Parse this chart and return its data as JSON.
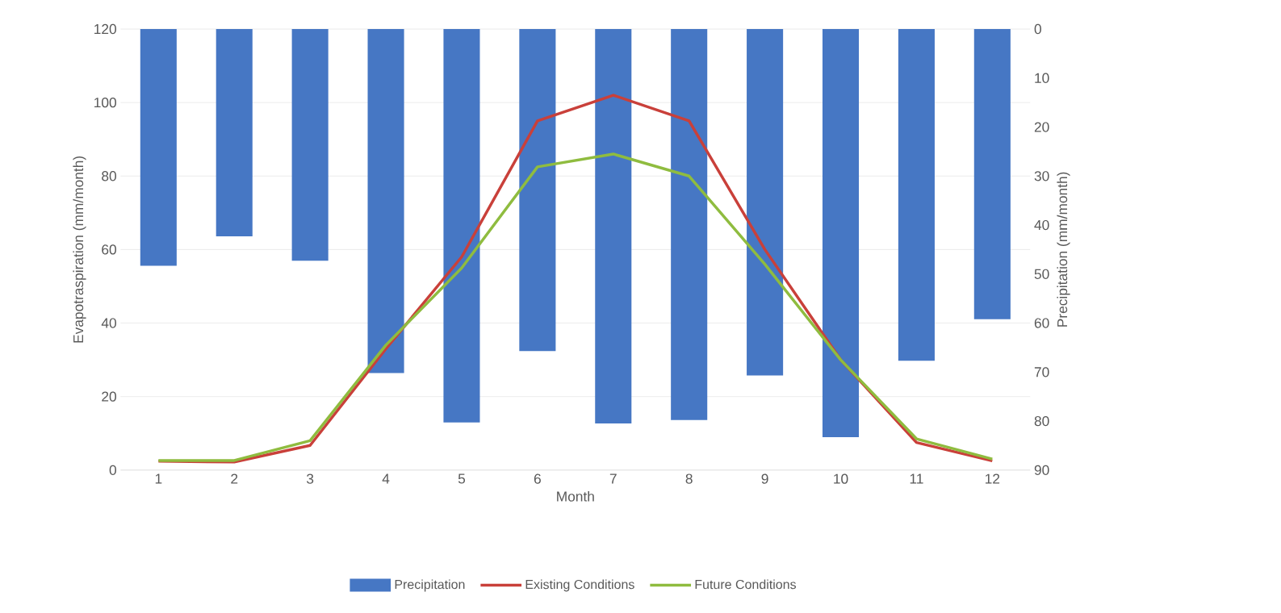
{
  "chart_data": {
    "type": "bar",
    "xlabel": "Month",
    "ylabel": "Evapotraspiration (mm/month)",
    "y2label": "Precipitation (mm/month)",
    "categories": [
      "1",
      "2",
      "3",
      "4",
      "5",
      "6",
      "7",
      "8",
      "9",
      "10",
      "11",
      "12"
    ],
    "series": [
      {
        "name": "Precipitation",
        "axis": "y2",
        "color": "#4677c4",
        "values": [
          48.3,
          42.3,
          47.3,
          70.2,
          80.3,
          65.7,
          80.5,
          79.8,
          70.7,
          83.3,
          67.7,
          59.2
        ]
      },
      {
        "name": "Existing Conditions",
        "type": "line",
        "color": "#c9403a",
        "values": [
          2.4,
          2.2,
          6.7,
          33,
          58,
          95,
          102,
          95,
          60,
          30,
          7.5,
          2.5
        ]
      },
      {
        "name": "Future Conditions",
        "type": "line",
        "color": "#8fbc3f",
        "values": [
          2.6,
          2.6,
          8,
          34,
          55,
          82.5,
          86,
          80,
          56,
          30,
          8.5,
          3
        ]
      }
    ],
    "ylim": [
      0,
      120
    ],
    "yticks": [
      0,
      20,
      40,
      60,
      80,
      100,
      120
    ],
    "y2lim": [
      90,
      0
    ],
    "y2ticks": [
      0,
      10,
      20,
      30,
      40,
      50,
      60,
      70,
      80,
      90
    ],
    "grid": "y",
    "legend": "bottom"
  }
}
